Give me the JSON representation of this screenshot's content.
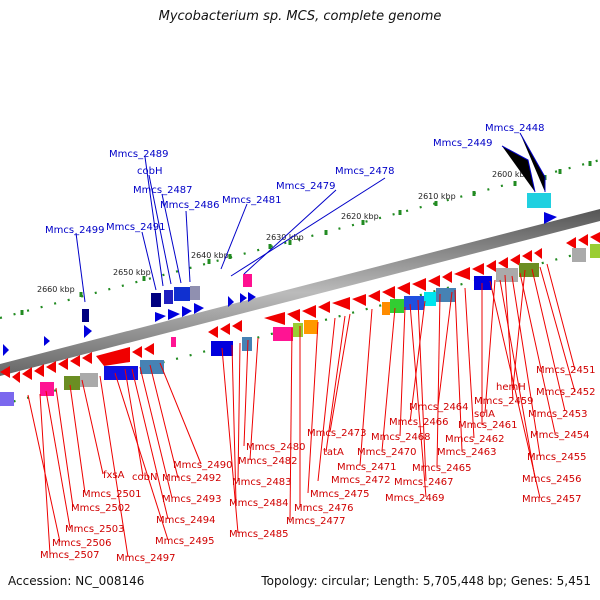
{
  "title": "Mycobacterium sp. MCS, complete genome",
  "footer": {
    "accession": "Accession: NC_008146",
    "topology": "Topology: circular; Length: 5,705,448 bp; Genes: 5,451"
  },
  "kbp_labels": [
    "2660 kbp",
    "2650 kbp",
    "2640 kbp",
    "2630 kbp",
    "2620 kbp",
    "2610 kbp",
    "2600 kbp"
  ],
  "top_labels": [
    "Mmcs_2448",
    "Mmcs_2449",
    "Mmcs_2478",
    "Mmcs_2479",
    "Mmcs_2481",
    "Mmcs_2489",
    "cobH",
    "Mmcs_2487",
    "Mmcs_2486",
    "Mmcs_2491",
    "Mmcs_2499"
  ],
  "bottom_labels": [
    "Mmcs_2451",
    "Mmcs_2452",
    "hemH",
    "Mmcs_2453",
    "Mmcs_2459",
    "solA",
    "Mmcs_2454",
    "Mmcs_2464",
    "Mmcs_2461",
    "Mmcs_2466",
    "Mmcs_2462",
    "Mmcs_2455",
    "Mmcs_2468",
    "Mmcs_2463",
    "Mmcs_2473",
    "Mmcs_2470",
    "Mmcs_2456",
    "Mmcs_2480",
    "tatA",
    "Mmcs_2465",
    "Mmcs_2457",
    "Mmcs_2471",
    "Mmcs_2482",
    "Mmcs_2490",
    "Mmcs_2472",
    "Mmcs_2467",
    "fxsA",
    "cobN",
    "Mmcs_2492",
    "Mmcs_2483",
    "Mmcs_2469",
    "Mmcs_2475",
    "Mmcs_2501",
    "Mmcs_2493",
    "Mmcs_2484",
    "Mmcs_2476",
    "Mmcs_2502",
    "Mmcs_2494",
    "Mmcs_2477",
    "Mmcs_2503",
    "Mmcs_2485",
    "Mmcs_2495",
    "Mmcs_2506",
    "Mmcs_2507",
    "Mmcs_2497"
  ],
  "colors": {
    "forward_gene": "#1010e0",
    "reverse_gene": "#f00000",
    "backbone": "#777777",
    "tick": "#228b22",
    "label_blue": "#0000c8",
    "label_red": "#d00000"
  }
}
